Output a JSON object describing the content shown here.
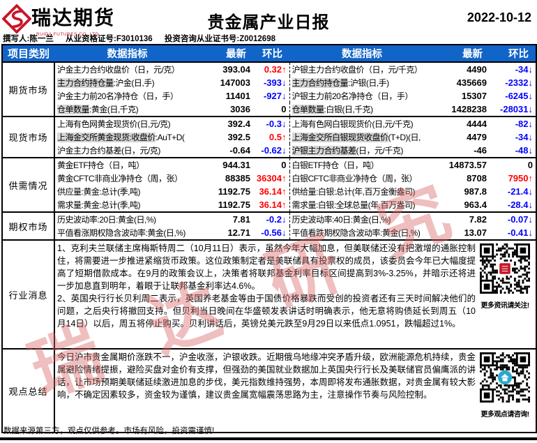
{
  "page": {
    "title": "贵金属产业日报",
    "date": "2022-10-12"
  },
  "brand": {
    "name": "瑞达期货",
    "subtitle": "RUIDA FUTURES CO.,LTD"
  },
  "byline": {
    "author": "撰写人:陈一兰",
    "qualification": "从业资格证号:F3010136",
    "advisory": "投资咨询从业证书号:Z0012698"
  },
  "colors": {
    "header_bg": "#1164c8",
    "up": "#ff0000",
    "down": "#0000ff",
    "brand_red": "#c81628",
    "highlight": "#d6d6d6"
  },
  "table": {
    "columns": [
      "项目类别",
      "数据指标",
      "最新",
      "环比",
      "数据指标",
      "最新",
      "环比"
    ],
    "sections": [
      {
        "category": "期货市场",
        "rows": [
          {
            "l": {
              "hl": "",
              "label": "沪金主力合约收盘价（日，元/克）",
              "latest": "393.04",
              "chg": "0.32",
              "dir": "up"
            },
            "r": {
              "hl": "",
              "label": "沪银主力合约收盘价（日，元/千克）",
              "latest": "4490",
              "chg": "-34",
              "dir": "down"
            }
          },
          {
            "l": {
              "hl": "主力合约持仓量",
              "label": ":沪金(日,手)",
              "latest": "147003",
              "chg": "-393",
              "dir": "down"
            },
            "r": {
              "hl": "主力合约持仓量",
              "label": ":沪银(日,手)",
              "latest": "435669",
              "chg": "-2332",
              "dir": "down"
            }
          },
          {
            "l": {
              "hl": "",
              "label": "沪金主力前20名净持仓（日，手）",
              "latest": "11401",
              "chg": "-927",
              "dir": "down"
            },
            "r": {
              "hl": "",
              "label": "沪银主力前20名净持仓（日，手）",
              "latest": "15307",
              "chg": "-6245",
              "dir": "down"
            }
          },
          {
            "l": {
              "hl": "仓单数量",
              "label": ":黄金(日,千克)",
              "latest": "3036",
              "chg": "0",
              "dir": "flat"
            },
            "r": {
              "hl": "仓单数量",
              "label": ":白银(日,千克)",
              "latest": "1428238",
              "chg": "-28031",
              "dir": "down"
            }
          }
        ]
      },
      {
        "category": "现货市场",
        "rows": [
          {
            "l": {
              "hl": "",
              "label": "上海有色网黄金现货价(日,元/克)",
              "latest": "392.4",
              "chg": "-0.3",
              "dir": "down"
            },
            "r": {
              "hl": "",
              "label": "上海有色网白银现货价(日,元/千克)",
              "latest": "4444",
              "chg": "-82",
              "dir": "down"
            }
          },
          {
            "l": {
              "hl": "上海金交所黄金现货:收盘价",
              "label": ":AuT+D(",
              "latest": "392.5",
              "chg": "0.5",
              "dir": "up"
            },
            "r": {
              "hl": "上海金交所白银现货收盘价",
              "label": "(T+D)(日,",
              "latest": "4479",
              "chg": "-34",
              "dir": "down"
            }
          },
          {
            "l": {
              "hl": "",
              "label": "沪金主力合约基差(日，元/克)",
              "latest": "-0.64",
              "chg": "-0.62",
              "dir": "down"
            },
            "r": {
              "hl": "沪银主力合约基差",
              "label": "(日，元/千克)",
              "latest": "-46",
              "chg": "-48",
              "dir": "down"
            }
          }
        ]
      },
      {
        "category": "供需情况",
        "rows": [
          {
            "l": {
              "hl": "",
              "label": "黄金ETF持仓（日，吨）",
              "latest": "944.31",
              "chg": "0",
              "dir": "flat"
            },
            "r": {
              "hl": "",
              "label": "白银ETF持仓（日，吨）",
              "latest": "14873.57",
              "chg": "0",
              "dir": "flat"
            }
          },
          {
            "l": {
              "hl": "",
              "label": "黄金CFTC非商业净持仓（周，张）",
              "latest": "88385",
              "chg": "36304",
              "dir": "up"
            },
            "r": {
              "hl": "",
              "label": "白银CFTC非商业净持仓（周，张）",
              "latest": "8708",
              "chg": "7950",
              "dir": "up"
            }
          },
          {
            "l": {
              "hl": "",
              "label": "供应量:黄金:总计(季,吨)",
              "latest": "1192.75",
              "chg": "36.14",
              "dir": "up"
            },
            "r": {
              "hl": "",
              "label": "供给量:白银:总计(年,百万金衡盎司)",
              "latest": "987.8",
              "chg": "-21.4",
              "dir": "down"
            }
          },
          {
            "l": {
              "hl": "",
              "label": "需求量:黄金:总计(季,吨)",
              "latest": "1192.75",
              "chg": "36.14",
              "dir": "up"
            },
            "r": {
              "hl": "",
              "label": "需求量:白银:全球总量(年,百万盎司)",
              "latest": "963.4",
              "chg": "-28.4",
              "dir": "down"
            }
          }
        ]
      },
      {
        "category": "期权市场",
        "rows": [
          {
            "l": {
              "hl": "",
              "label": "历史波动率:20日:黄金(日,%)",
              "latest": "7.81",
              "chg": "-0.2",
              "dir": "down"
            },
            "r": {
              "hl": "",
              "label": "历史波动率:40日:黄金(日,%)",
              "latest": "7.82",
              "chg": "-0.07",
              "dir": "down"
            }
          },
          {
            "l": {
              "hl": "",
              "label": "平值看涨期权隐含波动率:黄金(日,%)",
              "latest": "12.71",
              "chg": "-0.56",
              "dir": "down"
            },
            "r": {
              "hl": "",
              "label": "平值看跌期权隐含波动率:黄金(日,%)",
              "latest": "13.07",
              "chg": "-0.41",
              "dir": "down"
            }
          }
        ]
      }
    ]
  },
  "news": {
    "category": "行业消息",
    "paragraphs": [
      "1、克利夫兰联储主席梅斯特周二（10月11日）表示，虽然今年大幅加息，但美联储还没有把激增的通胀控制住，将需要进一步推进紧缩货币政策。这位政策制定者是美联储具有投票权的成员，该委员会今年已大幅度提高了短期借款成本。在9月的政策会议上，决策者将联邦基金利率目标区间提高到3%-3.25%，并暗示还将进一步加息直到明年，着眼于让联邦基金利率达4.6%。",
      "2、英国央行行长贝利周二表示，英国养老基金等由于国债价格暴跌而受创的投资者还有三天时间解决他们的问题，之后央行将撤回支持。但贝利当日晚间在华盛顿发表讲话时明确表示，他无意将购债延长到周五（10月14日）以后，周五将停止购买。贝利讲话后，英镑兑美元跌至9月29日以来低点1.0951，跌幅超过1%。"
    ],
    "qr_caption": "更多资讯请关注!"
  },
  "viewpoint": {
    "category": "观点总结",
    "paragraphs": [
      "今日沪市贵金属期价涨跌不一，沪金收涨，沪银收跌。近期俄乌地缘冲突矛盾升级，欧洲能源危机持续，贵金属避险情绪提振，避险买盘对金价有支撑，但强劲的美国就业数据加上英国央行行长及美联储官员偏鹰派的讲话，让市场预期美联储延续激进加息的步伐，美元指数维持强势，本周即将发布通胀数据，对贵金属有较大影响，不确定因素较多，资金较为谨慎，建议贵金属宽幅震荡思路为主，注意操作节奏与风险控制。"
    ],
    "qr_caption": "更多观点请咨询!"
  },
  "watermark": {
    "text": "瑞达研究"
  },
  "footer": {
    "disclaimer": "数据来源第三方，观点仅供参考。市场有风险，投资需谨慎!"
  }
}
